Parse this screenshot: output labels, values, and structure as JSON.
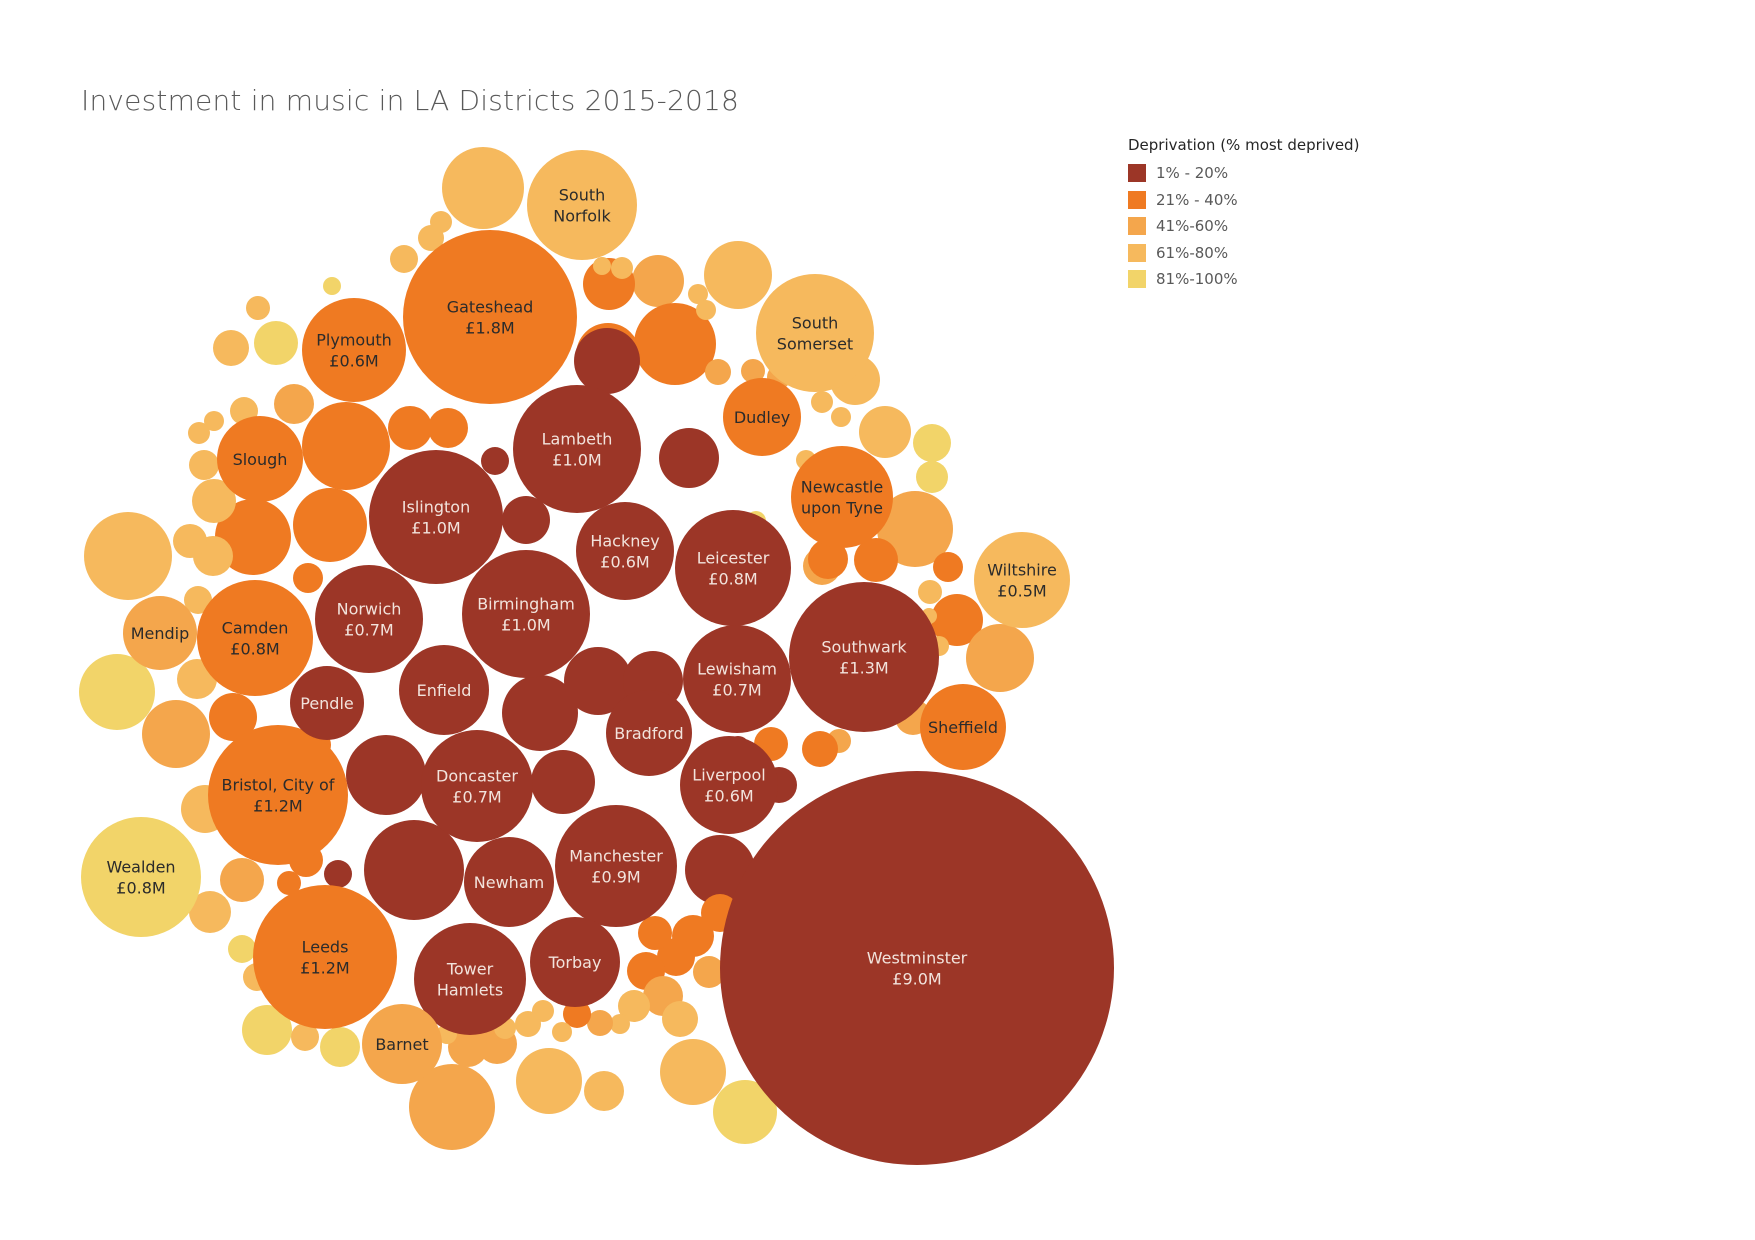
{
  "title": "Investment in music in LA Districts 2015-2018",
  "legend": {
    "title": "Deprivation (% most deprived)",
    "items": [
      {
        "label": "1% - 20%",
        "color": "#9c3627"
      },
      {
        "label": "21% - 40%",
        "color": "#ef7a22"
      },
      {
        "label": "41%-60%",
        "color": "#f4a64c"
      },
      {
        "label": "61%-80%",
        "color": "#f6b95d"
      },
      {
        "label": "81%-100%",
        "color": "#f2d469"
      }
    ]
  },
  "chart_data": {
    "type": "packed-bubble",
    "title": "Investment in music in LA Districts 2015-2018",
    "size_measure": "Investment (£M)",
    "color_measure": "Deprivation (% most deprived)",
    "labelled_points": [
      {
        "name": "Westminster",
        "value": "£9.0M",
        "group": "1% - 20%"
      },
      {
        "name": "Gateshead",
        "value": "£1.8M",
        "group": "21% - 40%"
      },
      {
        "name": "Southwark",
        "value": "£1.3M",
        "group": "1% - 20%"
      },
      {
        "name": "Bristol, City of",
        "value": "£1.2M",
        "group": "21% - 40%"
      },
      {
        "name": "Leeds",
        "value": "£1.2M",
        "group": "21% - 40%"
      },
      {
        "name": "Lambeth",
        "value": "£1.0M",
        "group": "1% - 20%"
      },
      {
        "name": "Islington",
        "value": "£1.0M",
        "group": "1% - 20%"
      },
      {
        "name": "Birmingham",
        "value": "£1.0M",
        "group": "1% - 20%"
      },
      {
        "name": "Manchester",
        "value": "£0.9M",
        "group": "1% - 20%"
      },
      {
        "name": "Camden",
        "value": "£0.8M",
        "group": "21% - 40%"
      },
      {
        "name": "Leicester",
        "value": "£0.8M",
        "group": "1% - 20%"
      },
      {
        "name": "Wealden",
        "value": "£0.8M",
        "group": "81%-100%"
      },
      {
        "name": "Norwich",
        "value": "£0.7M",
        "group": "1% - 20%"
      },
      {
        "name": "Lewisham",
        "value": "£0.7M",
        "group": "1% - 20%"
      },
      {
        "name": "Doncaster",
        "value": "£0.7M",
        "group": "1% - 20%"
      },
      {
        "name": "Plymouth",
        "value": "£0.6M",
        "group": "21% - 40%"
      },
      {
        "name": "Hackney",
        "value": "£0.6M",
        "group": "1% - 20%"
      },
      {
        "name": "Liverpool",
        "value": "£0.6M",
        "group": "1% - 20%"
      },
      {
        "name": "Wiltshire",
        "value": "£0.5M",
        "group": "61%-80%"
      },
      {
        "name": "South Norfolk",
        "value": "",
        "group": "61%-80%"
      },
      {
        "name": "South Somerset",
        "value": "",
        "group": "61%-80%"
      },
      {
        "name": "Dudley",
        "value": "",
        "group": "21% - 40%"
      },
      {
        "name": "Newcastle upon Tyne",
        "value": "",
        "group": "21% - 40%"
      },
      {
        "name": "Slough",
        "value": "",
        "group": "21% - 40%"
      },
      {
        "name": "Mendip",
        "value": "",
        "group": "41%-60%"
      },
      {
        "name": "Sheffield",
        "value": "",
        "group": "21% - 40%"
      },
      {
        "name": "Pendle",
        "value": "",
        "group": "1% - 20%"
      },
      {
        "name": "Enfield",
        "value": "",
        "group": "1% - 20%"
      },
      {
        "name": "Bradford",
        "value": "",
        "group": "1% - 20%"
      },
      {
        "name": "Newham",
        "value": "",
        "group": "1% - 20%"
      },
      {
        "name": "Tower Hamlets",
        "value": "",
        "group": "1% - 20%"
      },
      {
        "name": "Torbay",
        "value": "",
        "group": "1% - 20%"
      },
      {
        "name": "Barnet",
        "value": "",
        "group": "41%-60%"
      }
    ]
  }
}
